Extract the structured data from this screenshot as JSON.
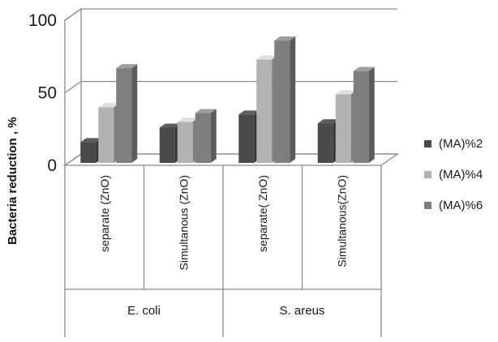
{
  "chart_data": {
    "type": "bar",
    "title": "",
    "xlabel": "",
    "ylabel": "Bacteria reduction , %",
    "ylim": [
      0,
      100
    ],
    "yticks": [
      0,
      50,
      100
    ],
    "categories": [
      "separate (ZnO)",
      "Simultanous (ZnO)",
      "separate( ZnO)",
      "Simultanous(ZnO)"
    ],
    "groups": [
      {
        "label": "E. coli",
        "span": [
          0,
          1
        ]
      },
      {
        "label": "S. areus",
        "span": [
          2,
          3
        ]
      }
    ],
    "series": [
      {
        "name": "(MA)%2",
        "color": "#4a4a4a",
        "values": [
          16,
          26,
          35,
          29
        ]
      },
      {
        "name": "(MA)%4",
        "color": "#b2b2b2",
        "values": [
          40,
          30,
          73,
          49
        ]
      },
      {
        "name": "(MA)%6",
        "color": "#7e7e7e",
        "values": [
          67,
          36,
          86,
          65
        ]
      }
    ],
    "legend_position": "right",
    "grid": true,
    "style": "3d-columns"
  }
}
